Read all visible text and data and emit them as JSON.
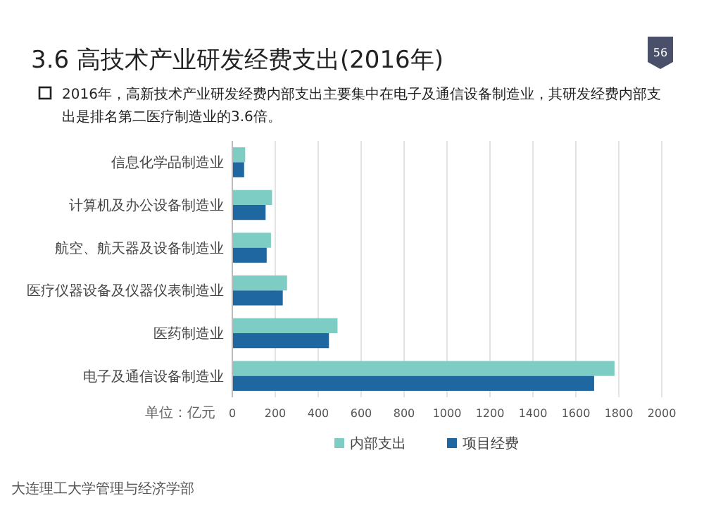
{
  "chart_data": {
    "type": "bar",
    "orientation": "horizontal",
    "title": "3.6  高技术产业研发经费支出(2016年)",
    "subtitle": "2016年，高新技术产业研发经费内部支出主要集中在电子及通信设备制造业，其研发经费内部支出是排名第二医疗制造业的3.6倍。",
    "categories": [
      "信息化学品制造业",
      "计算机及办公设备制造业",
      "航空、航天器及设备制造业",
      "医疗仪器设备及仪器仪表制造业",
      "医药制造业",
      "电子及通信设备制造业"
    ],
    "series": [
      {
        "name": "内部支出",
        "color": "#7ecdc4",
        "values": [
          60,
          185,
          180,
          255,
          490,
          1780
        ]
      },
      {
        "name": "项目经费",
        "color": "#1f67a0",
        "values": [
          55,
          155,
          160,
          235,
          450,
          1685
        ]
      }
    ],
    "xlim": [
      0,
      2000
    ],
    "xticks": [
      0,
      200,
      400,
      600,
      800,
      1000,
      1200,
      1400,
      1600,
      1800,
      2000
    ],
    "grid": "x",
    "legend": "bottom",
    "annotations": [
      "单位：亿元",
      "大连理工大学管理与经济学部",
      "56"
    ]
  }
}
